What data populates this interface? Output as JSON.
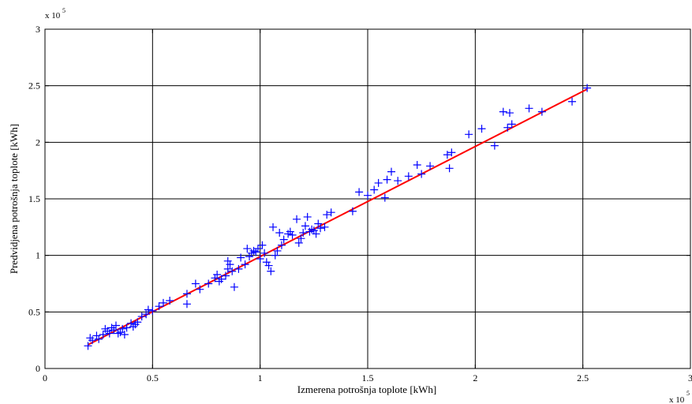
{
  "chart_data": {
    "type": "scatter",
    "title": "",
    "xlabel": "Izmerena potrošnja toplote [kWh]",
    "ylabel": "Predvidjena potrošnja toplote [kWh]",
    "x_multiplier_label": "x 10",
    "x_multiplier_exp": "5",
    "y_multiplier_label": "x 10",
    "y_multiplier_exp": "5",
    "xlim": [
      0,
      3
    ],
    "ylim": [
      0,
      3
    ],
    "x_ticks": [
      0,
      0.5,
      1,
      1.5,
      2,
      2.5,
      3
    ],
    "y_ticks": [
      0,
      0.5,
      1,
      1.5,
      2,
      2.5,
      3
    ],
    "x_tick_labels": [
      "0",
      "0.5",
      "1",
      "1.5",
      "2",
      "2.5",
      "3"
    ],
    "y_tick_labels": [
      "0",
      "0.5",
      "1",
      "1.5",
      "2",
      "2.5",
      "3"
    ],
    "grid": true,
    "marker_color": "#0000ff",
    "line_color": "#ff0000",
    "fit_line": {
      "x": [
        0.2,
        2.52
      ],
      "y": [
        0.21,
        2.47
      ]
    },
    "series": [
      {
        "x": [
          0.2,
          0.21,
          0.22,
          0.24,
          0.25,
          0.27,
          0.28,
          0.29,
          0.3,
          0.31,
          0.32,
          0.33,
          0.34,
          0.35,
          0.36,
          0.37,
          0.38,
          0.4,
          0.41,
          0.42,
          0.43,
          0.45,
          0.47,
          0.48,
          0.5,
          0.53,
          0.55,
          0.58,
          0.66,
          0.66,
          0.7,
          0.72,
          0.76,
          0.79,
          0.8,
          0.81,
          0.82,
          0.84,
          0.85,
          0.85,
          0.86,
          0.87,
          0.88,
          0.9,
          0.91,
          0.93,
          0.94,
          0.95,
          0.96,
          0.97,
          0.98,
          0.99,
          1.0,
          1.01,
          1.02,
          1.03,
          1.04,
          1.05,
          1.06,
          1.07,
          1.08,
          1.09,
          1.1,
          1.11,
          1.13,
          1.14,
          1.15,
          1.17,
          1.18,
          1.19,
          1.2,
          1.21,
          1.22,
          1.23,
          1.24,
          1.25,
          1.26,
          1.27,
          1.28,
          1.3,
          1.31,
          1.33,
          1.43,
          1.46,
          1.5,
          1.53,
          1.55,
          1.58,
          1.59,
          1.61,
          1.64,
          1.69,
          1.73,
          1.75,
          1.79,
          1.87,
          1.88,
          1.89,
          1.97,
          2.03,
          2.09,
          2.13,
          2.15,
          2.16,
          2.17,
          2.25,
          2.31,
          2.45,
          2.52
        ],
        "y": [
          0.2,
          0.27,
          0.25,
          0.29,
          0.26,
          0.3,
          0.35,
          0.33,
          0.31,
          0.36,
          0.34,
          0.38,
          0.31,
          0.32,
          0.35,
          0.3,
          0.36,
          0.4,
          0.37,
          0.39,
          0.41,
          0.46,
          0.48,
          0.52,
          0.51,
          0.55,
          0.58,
          0.6,
          0.66,
          0.57,
          0.75,
          0.7,
          0.75,
          0.8,
          0.83,
          0.77,
          0.79,
          0.82,
          0.95,
          0.88,
          0.92,
          0.86,
          0.72,
          0.88,
          0.98,
          0.92,
          1.06,
          0.99,
          1.02,
          1.04,
          1.03,
          1.06,
          0.97,
          1.09,
          1.02,
          0.94,
          0.91,
          0.86,
          1.25,
          1.0,
          1.04,
          1.2,
          1.09,
          1.14,
          1.19,
          1.21,
          1.18,
          1.32,
          1.11,
          1.15,
          1.2,
          1.26,
          1.34,
          1.21,
          1.23,
          1.22,
          1.19,
          1.28,
          1.24,
          1.25,
          1.36,
          1.38,
          1.39,
          1.56,
          1.53,
          1.58,
          1.64,
          1.51,
          1.67,
          1.74,
          1.66,
          1.7,
          1.8,
          1.72,
          1.79,
          1.89,
          1.77,
          1.91,
          2.07,
          2.12,
          1.97,
          2.27,
          2.13,
          2.26,
          2.16,
          2.3,
          2.27,
          2.36,
          2.48
        ]
      }
    ]
  }
}
